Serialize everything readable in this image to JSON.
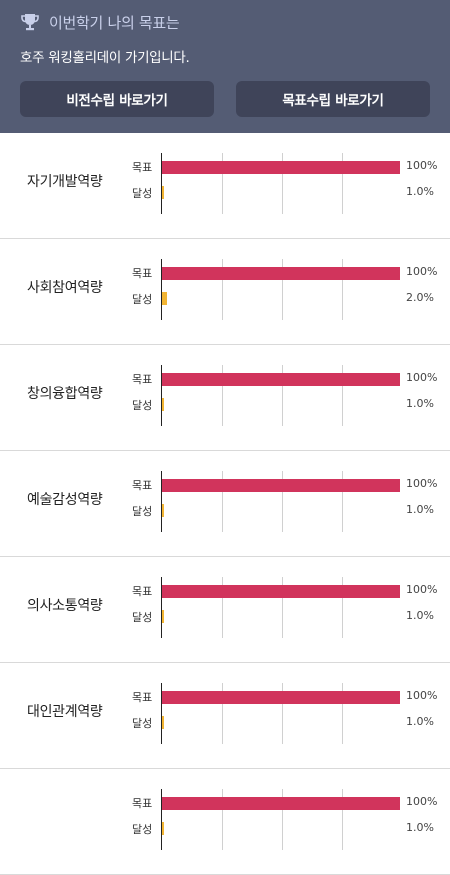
{
  "header": {
    "title": "이번학기 나의 목표는",
    "subtitle": "호주 워킹홀리데이 가기입니다.",
    "icon": "trophy-icon",
    "buttons": [
      {
        "label": "비전수립 바로가기"
      },
      {
        "label": "목표수립 바로가기"
      }
    ]
  },
  "chart_data": {
    "type": "bar",
    "series_labels": {
      "target": "목표",
      "achieved": "달성"
    },
    "colors": {
      "target": "#d1345c",
      "achieved": "#f2b533"
    },
    "xlim": [
      0,
      100
    ],
    "grid": true,
    "rows": [
      {
        "category": "자기개발역량",
        "target": 100,
        "target_label": "100%",
        "achieved": 1.0,
        "achieved_label": "1.0%"
      },
      {
        "category": "사회참여역량",
        "target": 100,
        "target_label": "100%",
        "achieved": 2.0,
        "achieved_label": "2.0%"
      },
      {
        "category": "창의융합역량",
        "target": 100,
        "target_label": "100%",
        "achieved": 1.0,
        "achieved_label": "1.0%"
      },
      {
        "category": "예술감성역량",
        "target": 100,
        "target_label": "100%",
        "achieved": 1.0,
        "achieved_label": "1.0%"
      },
      {
        "category": "의사소통역량",
        "target": 100,
        "target_label": "100%",
        "achieved": 1.0,
        "achieved_label": "1.0%"
      },
      {
        "category": "대인관계역량",
        "target": 100,
        "target_label": "100%",
        "achieved": 1.0,
        "achieved_label": "1.0%"
      },
      {
        "category": "",
        "target": 100,
        "target_label": "100%",
        "achieved": 1.0,
        "achieved_label": "1.0%"
      }
    ]
  }
}
